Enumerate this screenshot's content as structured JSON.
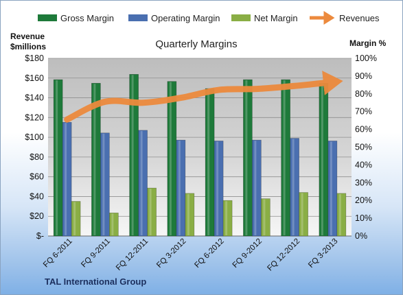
{
  "chart_data": {
    "type": "bar",
    "title": "Quarterly Margins",
    "footer": "TAL International Group",
    "categories": [
      "FQ 6-2011",
      "FQ 9-2011",
      "FQ 12-2011",
      "FQ 3-2012",
      "FQ 6-2012",
      "FQ 9-2012",
      "FQ 12-2012",
      "FQ 3-2013"
    ],
    "y_left": {
      "label_line1": "Revenue",
      "label_line2": "$millions",
      "range": [
        0,
        180
      ],
      "ticks": [
        "$-",
        "$20",
        "$40",
        "$60",
        "$80",
        "$100",
        "$120",
        "$140",
        "$160",
        "$180"
      ]
    },
    "y_right": {
      "label": "Margin %",
      "range": [
        0,
        100
      ],
      "ticks": [
        "0%",
        "10%",
        "20%",
        "30%",
        "40%",
        "50%",
        "60%",
        "70%",
        "80%",
        "90%",
        "100%"
      ]
    },
    "series": [
      {
        "name": "Gross Margin",
        "type": "bar",
        "axis": "right",
        "color": "#1e7a3a",
        "values": [
          88,
          86,
          91,
          87,
          83,
          88,
          88,
          86
        ]
      },
      {
        "name": "Operating Margin",
        "type": "bar",
        "axis": "right",
        "color": "#4a6fb0",
        "values": [
          64,
          58,
          59.5,
          54,
          53.5,
          54,
          55,
          53.5
        ]
      },
      {
        "name": "Net Margin",
        "type": "bar",
        "axis": "right",
        "color": "#8aae45",
        "values": [
          19.5,
          13,
          27,
          24,
          20,
          21,
          24.5,
          24
        ]
      },
      {
        "name": "Revenues",
        "type": "line",
        "axis": "left",
        "color": "#ec8a3d",
        "values": [
          118,
          136,
          135,
          140,
          148,
          149,
          152,
          156
        ]
      }
    ],
    "grid": true,
    "legend_position": "top"
  }
}
